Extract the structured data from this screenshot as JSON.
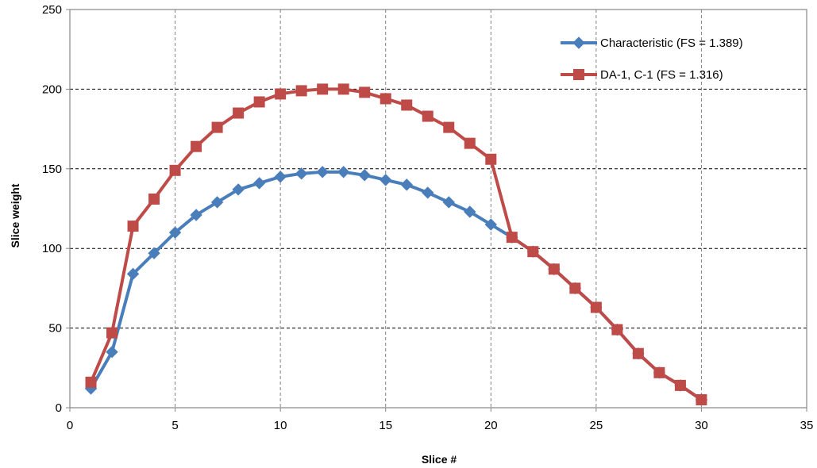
{
  "chart_data": {
    "type": "line",
    "title": "",
    "xlabel": "Slice #",
    "ylabel": "Slice weight",
    "xlim": [
      0,
      35
    ],
    "ylim": [
      0,
      250
    ],
    "x_ticks": [
      0,
      5,
      10,
      15,
      20,
      25,
      30,
      35
    ],
    "y_ticks": [
      0,
      50,
      100,
      150,
      200,
      250
    ],
    "x_tick_labels": [
      "0",
      "5",
      "10",
      "15",
      "20",
      "25",
      "30",
      "35"
    ],
    "y_tick_labels": [
      "0",
      "50",
      "100",
      "150",
      "200",
      "250"
    ],
    "grid": "dashed",
    "legend_position": "top-right",
    "series": [
      {
        "name": "Characteristic (FS = 1.389)",
        "color": "#4a7ebb",
        "marker": "diamond",
        "x": [
          1,
          2,
          3,
          4,
          5,
          6,
          7,
          8,
          9,
          10,
          11,
          12,
          13,
          14,
          15,
          16,
          17,
          18,
          19,
          20,
          21,
          22,
          23,
          24,
          25,
          26,
          27,
          28,
          29,
          30
        ],
        "values": [
          12,
          35,
          84,
          97,
          110,
          121,
          129,
          137,
          141,
          145,
          147,
          148,
          148,
          146,
          143,
          140,
          135,
          129,
          123,
          115,
          107,
          98,
          87,
          75,
          63,
          49,
          34,
          22,
          14,
          5
        ]
      },
      {
        "name": "DA-1, C-1 (FS = 1.316)",
        "color": "#be4b48",
        "marker": "square",
        "x": [
          1,
          2,
          3,
          4,
          5,
          6,
          7,
          8,
          9,
          10,
          11,
          12,
          13,
          14,
          15,
          16,
          17,
          18,
          19,
          20,
          21,
          22,
          23,
          24,
          25,
          26,
          27,
          28,
          29,
          30
        ],
        "values": [
          16,
          47,
          114,
          131,
          149,
          164,
          176,
          185,
          192,
          197,
          199,
          200,
          200,
          198,
          194,
          190,
          183,
          176,
          166,
          156,
          107,
          98,
          87,
          75,
          63,
          49,
          34,
          22,
          14,
          5
        ]
      }
    ]
  }
}
